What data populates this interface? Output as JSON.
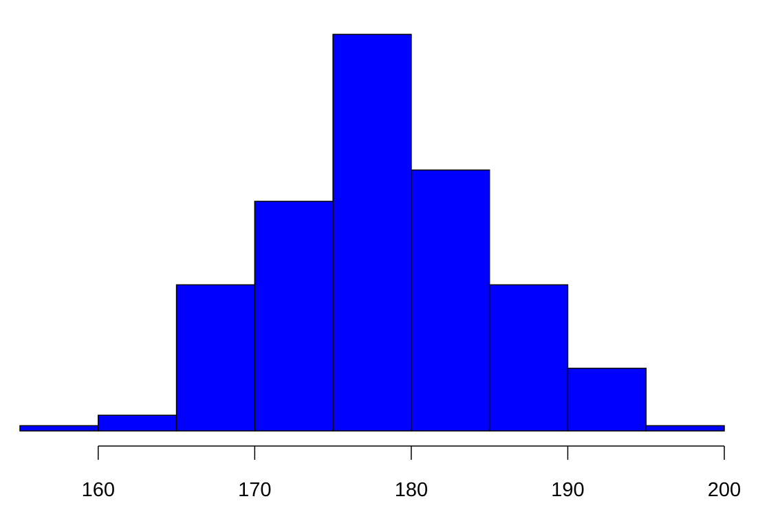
{
  "chart_data": {
    "type": "histogram",
    "title": "",
    "xlabel": "",
    "ylabel": "",
    "bin_edges": [
      155,
      160,
      165,
      170,
      175,
      180,
      185,
      190,
      195,
      200
    ],
    "values": [
      1,
      3,
      28,
      44,
      76,
      50,
      28,
      12,
      1
    ],
    "xlim": [
      155,
      200
    ],
    "ylim": [
      0,
      76
    ],
    "x_ticks": [
      "160",
      "170",
      "180",
      "190",
      "200"
    ],
    "y_axis_shown": false,
    "grid": false,
    "legend": "none",
    "colors": {
      "bar_fill": "#0000FF",
      "bar_edge": "#000000"
    }
  }
}
